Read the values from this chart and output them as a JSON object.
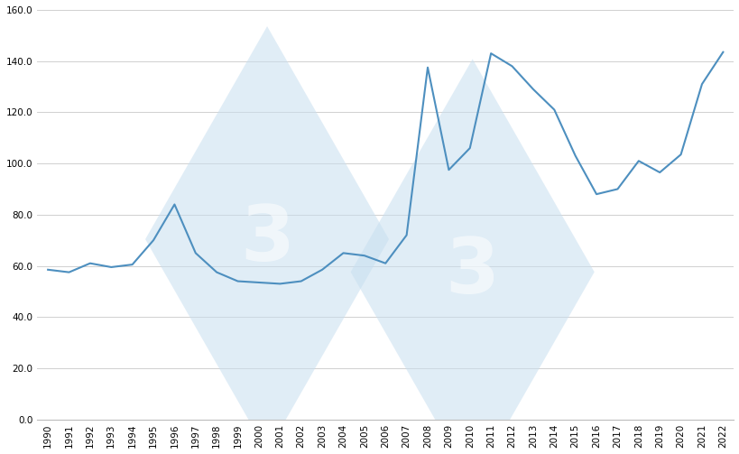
{
  "years": [
    1990,
    1991,
    1992,
    1993,
    1994,
    1995,
    1996,
    1997,
    1998,
    1999,
    2000,
    2001,
    2002,
    2003,
    2004,
    2005,
    2006,
    2007,
    2008,
    2009,
    2010,
    2011,
    2012,
    2013,
    2014,
    2015,
    2016,
    2017,
    2018,
    2019,
    2020,
    2021,
    2022
  ],
  "values": [
    58.5,
    57.5,
    61.0,
    59.5,
    60.5,
    70.0,
    84.0,
    65.0,
    57.5,
    54.0,
    53.5,
    53.0,
    54.0,
    58.5,
    65.0,
    64.0,
    61.0,
    72.0,
    137.5,
    97.5,
    106.0,
    143.0,
    138.0,
    129.0,
    121.0,
    103.0,
    88.0,
    90.0,
    101.0,
    96.5,
    103.5,
    131.0,
    143.5
  ],
  "line_color": "#4d8fbf",
  "bg_color": "#ffffff",
  "grid_color": "#d0d0d0",
  "ylim": [
    0.0,
    160.0
  ],
  "yticks": [
    0.0,
    20.0,
    40.0,
    60.0,
    80.0,
    100.0,
    120.0,
    140.0,
    160.0
  ],
  "tick_fontsize": 7.5,
  "line_width": 1.5,
  "watermark_diamond_color": "#c8dff0",
  "watermark_text_color": "#ffffff",
  "watermark_alpha": 0.55
}
